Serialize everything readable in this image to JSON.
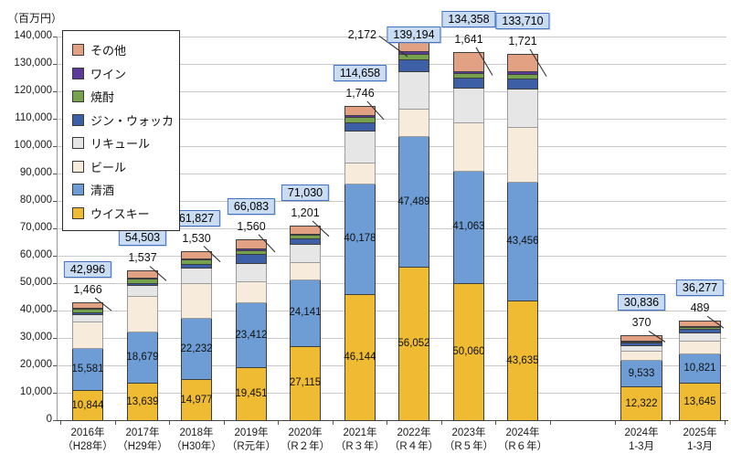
{
  "chart_data": {
    "type": "bar",
    "stacked": true,
    "title": "",
    "unit_label": "（百万円）",
    "xlabel": "",
    "ylabel": "（百万円）",
    "ylim": [
      0,
      140000
    ],
    "ytick_interval": 10000,
    "yticks": [
      "0",
      "10,000",
      "20,000",
      "30,000",
      "40,000",
      "50,000",
      "60,000",
      "70,000",
      "80,000",
      "90,000",
      "100,000",
      "110,000",
      "120,000",
      "130,000",
      "140,000"
    ],
    "grid": true,
    "legend_position": "top-left",
    "legend_order_top_to_bottom": [
      "その他",
      "ワイン",
      "焼酎",
      "ジン・ウォッカ",
      "リキュール",
      "ビール",
      "清酒",
      "ウイスキー"
    ],
    "series": [
      {
        "key": "whisky",
        "label": "ウイスキー",
        "color": "#efbb33"
      },
      {
        "key": "sake",
        "label": "清酒",
        "color": "#6d9dd4"
      },
      {
        "key": "beer",
        "label": "ビール",
        "color": "#f7ecdc"
      },
      {
        "key": "liqueur",
        "label": "リキュール",
        "color": "#e6e6e6"
      },
      {
        "key": "gin_vodka",
        "label": "ジン・ウォッカ",
        "color": "#3c5fa5"
      },
      {
        "key": "shochu",
        "label": "焼酎",
        "color": "#76a24e"
      },
      {
        "key": "wine",
        "label": "ワイン",
        "color": "#5b3a9b"
      },
      {
        "key": "other",
        "label": "その他",
        "color": "#e3a183"
      }
    ],
    "bars": [
      {
        "label_line1": "2016年",
        "label_line2": "（H28年）",
        "group": "annual",
        "total": 42996,
        "total_label": "42,996",
        "shochu_callout": "1,466",
        "whisky_label": "10,844",
        "sake_label": "15,581",
        "callout_side": "top",
        "segments": {
          "whisky": 10844,
          "sake": 15581,
          "beer": 9600,
          "liqueur": 2800,
          "gin_vodka": 400,
          "shochu": 1466,
          "wine": 305,
          "other": 2000
        }
      },
      {
        "label_line1": "2017年",
        "label_line2": "（H29年）",
        "group": "annual",
        "total": 54503,
        "total_label": "54,503",
        "shochu_callout": "1,537",
        "whisky_label": "13,639",
        "sake_label": "18,679",
        "callout_side": "top",
        "segments": {
          "whisky": 13639,
          "sake": 18679,
          "beer": 12900,
          "liqueur": 4200,
          "gin_vodka": 700,
          "shochu": 1537,
          "wine": 348,
          "other": 2500
        }
      },
      {
        "label_line1": "2018年",
        "label_line2": "（H30年）",
        "group": "annual",
        "total": 61827,
        "total_label": "61,827",
        "shochu_callout": "1,530",
        "whisky_label": "14,977",
        "sake_label": "22,232",
        "callout_side": "top",
        "segments": {
          "whisky": 14977,
          "sake": 22232,
          "beer": 12800,
          "liqueur": 5800,
          "gin_vodka": 1200,
          "shochu": 1530,
          "wine": 388,
          "other": 2900
        }
      },
      {
        "label_line1": "2019年",
        "label_line2": "（R元年）",
        "group": "annual",
        "total": 66083,
        "total_label": "66,083",
        "shochu_callout": "1,560",
        "whisky_label": "19,451",
        "sake_label": "23,412",
        "callout_side": "top",
        "segments": {
          "whisky": 19451,
          "sake": 23412,
          "beer": 7800,
          "liqueur": 6700,
          "gin_vodka": 3200,
          "shochu": 1560,
          "wine": 460,
          "other": 3500
        }
      },
      {
        "label_line1": "2020年",
        "label_line2": "（R２年）",
        "group": "annual",
        "total": 71030,
        "total_label": "71,030",
        "shochu_callout": "1,201",
        "whisky_label": "27,115",
        "sake_label": "24,141",
        "callout_side": "top",
        "segments": {
          "whisky": 27115,
          "sake": 24141,
          "beer": 6400,
          "liqueur": 6700,
          "gin_vodka": 2100,
          "shochu": 1201,
          "wine": 373,
          "other": 3000
        }
      },
      {
        "label_line1": "2021年",
        "label_line2": "（R３年）",
        "group": "annual",
        "total": 114658,
        "total_label": "114,658",
        "shochu_callout": "1,746",
        "whisky_label": "46,144",
        "sake_label": "40,178",
        "callout_side": "top",
        "segments": {
          "whisky": 46144,
          "sake": 40178,
          "beer": 7800,
          "liqueur": 11400,
          "gin_vodka": 3300,
          "shochu": 1746,
          "wine": 690,
          "other": 3400
        }
      },
      {
        "label_line1": "2022年",
        "label_line2": "（R４年）",
        "group": "annual",
        "total": 139194,
        "total_label": "139,194",
        "shochu_callout": "2,172",
        "whisky_label": "56,052",
        "sake_label": "47,489",
        "callout_side": "left",
        "segments": {
          "whisky": 56052,
          "sake": 47489,
          "beer": 10281,
          "liqueur": 13600,
          "gin_vodka": 4200,
          "shochu": 2172,
          "wine": 900,
          "other": 4500
        }
      },
      {
        "label_line1": "2023年",
        "label_line2": "（R５年）",
        "group": "annual",
        "total": 134358,
        "total_label": "134,358",
        "shochu_callout": "1,641",
        "whisky_label": "50,060",
        "sake_label": "41,063",
        "callout_side": "top",
        "segments": {
          "whisky": 50060,
          "sake": 41063,
          "beer": 17600,
          "liqueur": 12600,
          "gin_vodka": 3700,
          "shochu": 1641,
          "wine": 794,
          "other": 6900
        }
      },
      {
        "label_line1": "2024年",
        "label_line2": "（R６年）",
        "group": "annual",
        "total": 133710,
        "total_label": "133,710",
        "shochu_callout": "1,721",
        "whisky_label": "43,635",
        "sake_label": "43,456",
        "callout_side": "top",
        "segments": {
          "whisky": 43635,
          "sake": 43456,
          "beer": 20000,
          "liqueur": 13900,
          "gin_vodka": 3600,
          "shochu": 1721,
          "wine": 1000,
          "other": 6398
        }
      },
      {
        "label_line1": "2024年",
        "label_line2": "1-3月",
        "group": "quarterly",
        "total": 30836,
        "total_label": "30,836",
        "shochu_callout": "370",
        "whisky_label": "12,322",
        "sake_label": "9,533",
        "callout_side": "top",
        "segments": {
          "whisky": 12322,
          "sake": 9533,
          "beer": 3500,
          "liqueur": 1900,
          "gin_vodka": 1100,
          "shochu": 370,
          "wine": 311,
          "other": 1800
        }
      },
      {
        "label_line1": "2025年",
        "label_line2": "1-3月",
        "group": "quarterly",
        "total": 36277,
        "total_label": "36,277",
        "shochu_callout": "489",
        "whisky_label": "13,645",
        "sake_label": "10,821",
        "callout_side": "top",
        "segments": {
          "whisky": 13645,
          "sake": 10821,
          "beer": 4500,
          "liqueur": 3000,
          "gin_vodka": 1400,
          "shochu": 489,
          "wine": 622,
          "other": 1800
        }
      }
    ],
    "note": "callout numbers point to the 焼酎 (shochu) segment; beer/liqueur/gin_vodka/wine/other values estimated from gridlines"
  },
  "colors": {
    "total_box_fill": "#c9dcf2",
    "total_box_border": "#4472c4",
    "gridline": "#c9c9c9",
    "axis": "#444444",
    "light_segment_border": "#9c9c9c",
    "dark_segment_border": "#3d3d3d",
    "leader_line": "#333333"
  }
}
